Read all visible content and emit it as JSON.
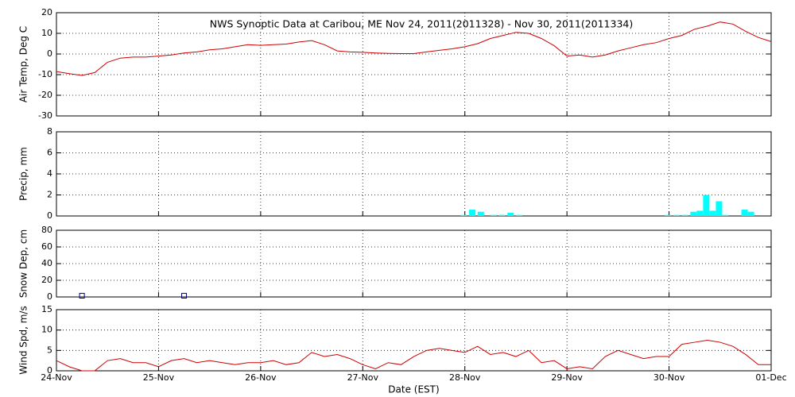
{
  "chart_data": [
    {
      "type": "line",
      "title": "NWS Synoptic Data at Caribou, ME    Nov 24, 2011(2011328) - Nov 30, 2011(2011334)",
      "ylabel": "Air Temp, Deg C",
      "xlim": [
        0,
        168
      ],
      "ylim": [
        -30,
        20
      ],
      "yticks": [
        -30,
        -20,
        -10,
        0,
        10,
        20
      ],
      "grid": true,
      "x": [
        0,
        3,
        6,
        9,
        12,
        15,
        18,
        21,
        24,
        27,
        30,
        33,
        36,
        39,
        42,
        45,
        48,
        51,
        54,
        57,
        60,
        63,
        66,
        69,
        72,
        75,
        78,
        81,
        84,
        87,
        90,
        93,
        96,
        99,
        102,
        105,
        108,
        111,
        114,
        117,
        120,
        123,
        126,
        129,
        132,
        135,
        138,
        141,
        144,
        147,
        150,
        153,
        156,
        159,
        162,
        165,
        168
      ],
      "series": [
        {
          "color": "#cc0000",
          "values": [
            -8.5,
            -9.5,
            -10.4,
            -9,
            -4,
            -2,
            -1.5,
            -1.5,
            -1,
            -0.5,
            0.5,
            1,
            2,
            2.5,
            3.5,
            4.5,
            4.2,
            4.5,
            4.8,
            5.8,
            6.5,
            4.5,
            1.5,
            1,
            0.8,
            0.5,
            0.3,
            0.2,
            0.2,
            1,
            1.8,
            2.5,
            3.5,
            5,
            7.5,
            9,
            10.5,
            10,
            7.5,
            4,
            -1,
            -0.5,
            -1.5,
            -0.5,
            1.5,
            3,
            4.5,
            5.5,
            7.5,
            9,
            12,
            13.5,
            15.5,
            14.5,
            11,
            8,
            6
          ]
        }
      ]
    },
    {
      "type": "bar",
      "ylabel": "Precip, mm",
      "xlim": [
        0,
        168
      ],
      "ylim": [
        0,
        8
      ],
      "yticks": [
        0,
        2,
        4,
        6,
        8
      ],
      "grid": true,
      "x": [
        95,
        97,
        99,
        102,
        104,
        106,
        108,
        143,
        145,
        147,
        149,
        150.5,
        152,
        153.5,
        155,
        156.5,
        161,
        162.5
      ],
      "series": [
        {
          "color": "#00ffff",
          "values": [
            0.1,
            0.6,
            0.4,
            0.1,
            0.1,
            0.3,
            0.1,
            0.1,
            0.1,
            0.1,
            0.4,
            0.5,
            2.0,
            0.5,
            1.4,
            0.1,
            0.6,
            0.4
          ]
        }
      ]
    },
    {
      "type": "scatter",
      "ylabel": "Snow Dep, cm",
      "xlim": [
        0,
        168
      ],
      "ylim": [
        0,
        80
      ],
      "yticks": [
        0,
        20,
        40,
        60,
        80
      ],
      "grid": true,
      "x": [
        6,
        30
      ],
      "series": [
        {
          "color": "#000080",
          "values": [
            1.5,
            1.5
          ]
        }
      ]
    },
    {
      "type": "line",
      "ylabel": "Wind Spd, m/s",
      "xlabel": "Date (EST)",
      "xlim": [
        0,
        168
      ],
      "ylim": [
        0,
        15
      ],
      "yticks": [
        0,
        5,
        10,
        15
      ],
      "grid": true,
      "xticks": [
        {
          "value": 0,
          "label": "24-Nov"
        },
        {
          "value": 24,
          "label": "25-Nov"
        },
        {
          "value": 48,
          "label": "26-Nov"
        },
        {
          "value": 72,
          "label": "27-Nov"
        },
        {
          "value": 96,
          "label": "28-Nov"
        },
        {
          "value": 120,
          "label": "29-Nov"
        },
        {
          "value": 144,
          "label": "30-Nov"
        },
        {
          "value": 168,
          "label": "01-Dec"
        }
      ],
      "x": [
        0,
        3,
        6,
        9,
        12,
        15,
        18,
        21,
        24,
        27,
        30,
        33,
        36,
        39,
        42,
        45,
        48,
        51,
        54,
        57,
        60,
        63,
        66,
        69,
        72,
        75,
        78,
        81,
        84,
        87,
        90,
        93,
        96,
        99,
        102,
        105,
        108,
        111,
        114,
        117,
        120,
        123,
        126,
        129,
        132,
        135,
        138,
        141,
        144,
        147,
        150,
        153,
        156,
        159,
        162,
        165,
        168
      ],
      "series": [
        {
          "color": "#cc0000",
          "values": [
            2.5,
            1,
            0,
            0,
            2.5,
            3,
            2,
            2,
            1,
            2.5,
            3,
            2,
            2.5,
            2,
            1.5,
            2,
            2,
            2.5,
            1.5,
            2,
            4.5,
            3.5,
            4,
            3,
            1.5,
            0.5,
            2,
            1.5,
            3.5,
            5,
            5.5,
            5,
            4.5,
            6,
            4,
            4.5,
            3.5,
            5,
            2,
            2.5,
            0.5,
            1,
            0.5,
            3.5,
            5,
            4,
            3,
            3.5,
            3.5,
            6.5,
            7,
            7.5,
            7,
            6,
            4,
            1.5,
            1.5
          ]
        }
      ]
    }
  ]
}
